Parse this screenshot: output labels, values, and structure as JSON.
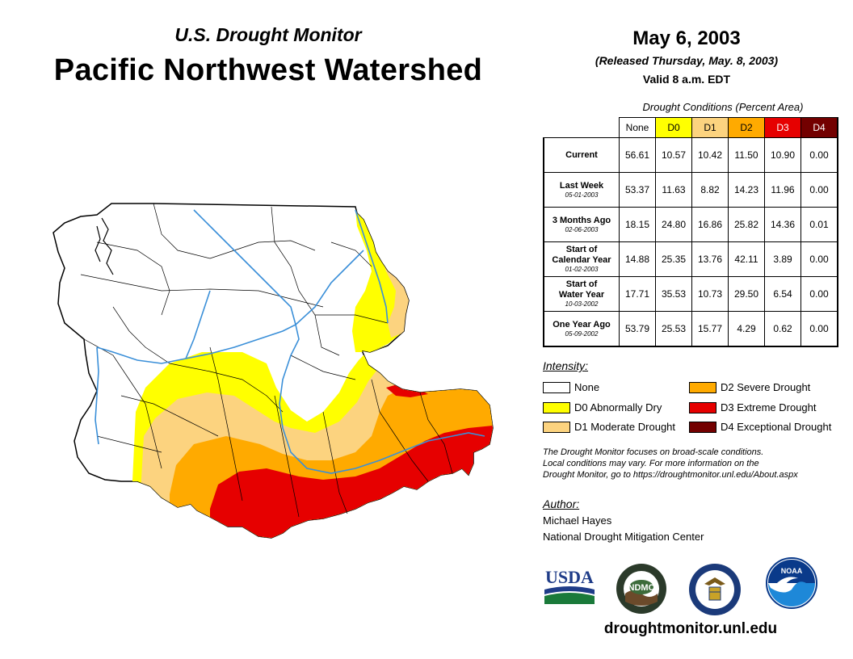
{
  "header": {
    "subtitle": "U.S. Drought Monitor",
    "title": "Pacific Northwest Watershed",
    "date": "May 6, 2003",
    "released": "(Released Thursday, May. 8, 2003)",
    "valid": "Valid 8 a.m. EDT"
  },
  "table": {
    "caption": "Drought Conditions (Percent Area)",
    "columns": [
      "None",
      "D0",
      "D1",
      "D2",
      "D3",
      "D4"
    ],
    "column_colors": [
      "#ffffff",
      "#ffff00",
      "#fcd37f",
      "#ffaa00",
      "#e60000",
      "#730000"
    ],
    "rows": [
      {
        "label": "Current",
        "date": "",
        "values": [
          "56.61",
          "10.57",
          "10.42",
          "11.50",
          "10.90",
          "0.00"
        ]
      },
      {
        "label": "Last Week",
        "date": "05-01-2003",
        "values": [
          "53.37",
          "11.63",
          "8.82",
          "14.23",
          "11.96",
          "0.00"
        ]
      },
      {
        "label": "3 Months Ago",
        "date": "02-06-2003",
        "values": [
          "18.15",
          "24.80",
          "16.86",
          "25.82",
          "14.36",
          "0.01"
        ]
      },
      {
        "label_line1": "Start of",
        "label_line2": "Calendar Year",
        "date": "01-02-2003",
        "values": [
          "14.88",
          "25.35",
          "13.76",
          "42.11",
          "3.89",
          "0.00"
        ]
      },
      {
        "label_line1": "Start of",
        "label_line2": "Water Year",
        "date": "10-03-2002",
        "values": [
          "17.71",
          "35.53",
          "10.73",
          "29.50",
          "6.54",
          "0.00"
        ]
      },
      {
        "label": "One Year Ago",
        "date": "05-09-2002",
        "values": [
          "53.79",
          "25.53",
          "15.77",
          "4.29",
          "0.62",
          "0.00"
        ]
      }
    ]
  },
  "legend": {
    "title": "Intensity:",
    "items": [
      {
        "label": "None",
        "color": "#ffffff"
      },
      {
        "label": "D0 Abnormally Dry",
        "color": "#ffff00"
      },
      {
        "label": "D1 Moderate Drought",
        "color": "#fcd37f"
      },
      {
        "label": "D2 Severe Drought",
        "color": "#ffaa00"
      },
      {
        "label": "D3 Extreme Drought",
        "color": "#e60000"
      },
      {
        "label": "D4 Exceptional Drought",
        "color": "#730000"
      }
    ]
  },
  "note": {
    "line1": "The Drought Monitor focuses on broad-scale conditions.",
    "line2": "Local conditions may vary. For more information on the",
    "line3": "Drought Monitor, go to https://droughtmonitor.unl.edu/About.aspx"
  },
  "author": {
    "title": "Author:",
    "name": "Michael Hayes",
    "org": "National Drought Mitigation Center"
  },
  "logos": {
    "usda": "USDA",
    "ndmc": "NDMC",
    "noaa": "NOAA"
  },
  "footer": {
    "url": "droughtmonitor.unl.edu"
  },
  "colors": {
    "water": "#3a8fd8",
    "boundary": "#000000"
  }
}
